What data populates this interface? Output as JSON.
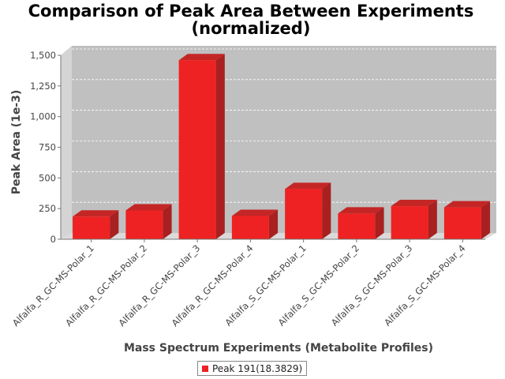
{
  "chart_data": {
    "type": "bar",
    "title_lines": [
      "Comparison of Peak Area Between Experiments",
      "(normalized)"
    ],
    "xlabel": "Mass Spectrum Experiments (Metabolite Profiles)",
    "ylabel": "Peak Area (1e-3)",
    "ylim": [
      0,
      1500
    ],
    "yticks": [
      0,
      250,
      500,
      750,
      1000,
      1250,
      1500
    ],
    "ytick_labels": [
      "0",
      "250",
      "500",
      "750",
      "1,000",
      "1,250",
      "1,500"
    ],
    "grid": true,
    "legend_position": "bottom",
    "categories": [
      "Alfalfa_R_GC-MS-Polar_1",
      "Alfalfa_R_GC-MS-Polar_2",
      "Alfalfa_R_GC-MS-Polar_3",
      "Alfalfa_R_GC-MS-Polar_4",
      "Alfalfa_S_GC-MS-Polar_1",
      "Alfalfa_S_GC-MS-Polar_2",
      "Alfalfa_S_GC-MS-Polar_3",
      "Alfalfa_S_GC-MS-Polar_4"
    ],
    "series": [
      {
        "name": "Peak 191(18.3829)",
        "color": "#ee2222",
        "values": [
          185,
          235,
          1460,
          190,
          410,
          210,
          270,
          260
        ]
      }
    ]
  }
}
